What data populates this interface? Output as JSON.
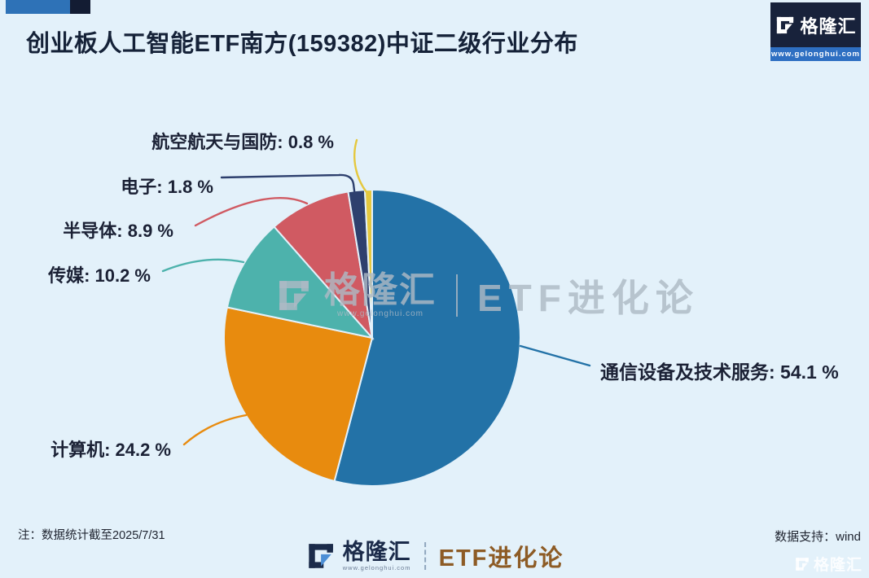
{
  "header": {
    "title": "创业板人工智能ETF南方(159382)中证二级行业分布",
    "logo": {
      "brand": "格隆汇",
      "url": "www.gelonghui.com"
    }
  },
  "watermark": {
    "brand": "格隆汇",
    "url": "www.gelonghui.com",
    "product": "ETF进化论"
  },
  "footer": {
    "note": "注：数据统计截至2025/7/31",
    "data_support": "数据支持：wind",
    "brand": "格隆汇",
    "brand_url": "www.gelonghui.com",
    "product": "ETF进化论",
    "corner_watermark": "格隆汇"
  },
  "chart_data": {
    "type": "pie",
    "title": "创业板人工智能ETF南方(159382)中证二级行业分布",
    "unit": "%",
    "start_angle_deg": 0,
    "direction": "clockwise",
    "slices": [
      {
        "id": "telecom",
        "name": "通信设备及技术服务",
        "value": 54.1,
        "display": "通信设备及技术服务: 54.1 %",
        "color": "#2372A7"
      },
      {
        "id": "computer",
        "name": "计算机",
        "value": 24.2,
        "display": "计算机: 24.2 %",
        "color": "#E88B0E"
      },
      {
        "id": "media",
        "name": "传媒",
        "value": 10.2,
        "display": "传媒: 10.2 %",
        "color": "#4DB2AC"
      },
      {
        "id": "semiconductor",
        "name": "半导体",
        "value": 8.9,
        "display": "半导体: 8.9 %",
        "color": "#D05A62"
      },
      {
        "id": "electronics",
        "name": "电子",
        "value": 1.8,
        "display": "电子: 1.8 %",
        "color": "#2E406E"
      },
      {
        "id": "aerospace-defense",
        "name": "航空航天与国防",
        "value": 0.8,
        "display": "航空航天与国防: 0.8 %",
        "color": "#E5C83F"
      }
    ],
    "layout": {
      "center": [
        457,
        415
      ],
      "radius": 182,
      "gap_color": "#E3F1FA",
      "leaders": [
        "M639,425 Q688,439 724,449",
        "M226,546 Q258,518 302,510",
        "M200,333 Q252,312 299,322",
        "M240,277 Q330,228 377,250",
        "M272,218 L416,215 Q432,214 434,226 L436,242",
        "M438,172 C431,196 438,220 450,236"
      ]
    }
  }
}
